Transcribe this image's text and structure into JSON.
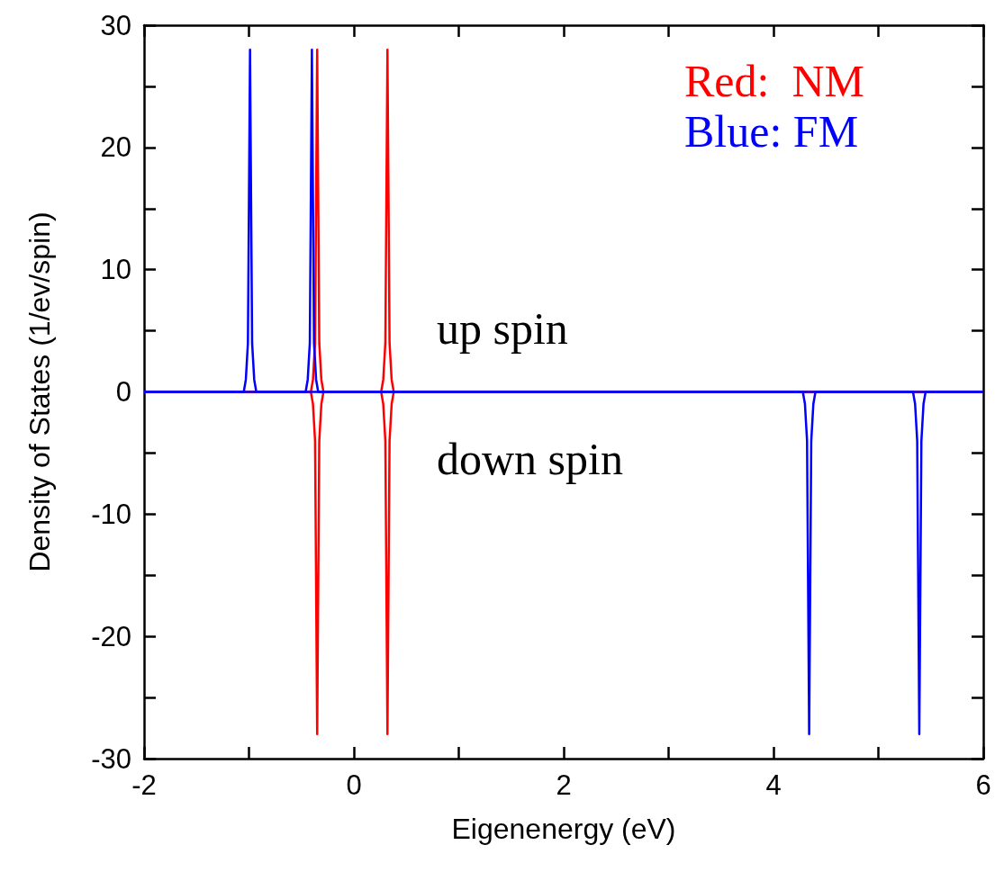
{
  "chart_data": {
    "type": "line",
    "xlabel": "Eigenenergy (eV)",
    "ylabel": "Density of States (1/ev/spin)",
    "xlim": [
      -2,
      6
    ],
    "ylim": [
      -30,
      30
    ],
    "xticks": [
      -2,
      {
        "value": -1,
        "label": null
      },
      0,
      {
        "value": 1,
        "label": null
      },
      2,
      {
        "value": 3,
        "label": null
      },
      4,
      {
        "value": 5,
        "label": null
      },
      6
    ],
    "yticks": [
      -30,
      {
        "value": -25,
        "label": null
      },
      -20,
      {
        "value": -15,
        "label": null
      },
      -10,
      {
        "value": -5,
        "label": null
      },
      0,
      {
        "value": 5,
        "label": null
      },
      10,
      {
        "value": 15,
        "label": null
      },
      20,
      {
        "value": 25,
        "label": null
      },
      30
    ],
    "grid": false,
    "legend": "top right",
    "annotations": [
      "up spin",
      "down spin"
    ],
    "series": [
      {
        "name": "Red:  NM",
        "color": "#ff0000",
        "x": [
          -2,
          -0.41,
          -0.39,
          -0.37,
          -0.35,
          -0.33,
          -0.31,
          -0.29,
          0.26,
          0.28,
          0.3,
          0.32,
          0.34,
          0.36,
          0.38,
          6
        ],
        "values": [
          0,
          0,
          1,
          4,
          28,
          4,
          1,
          0,
          0,
          1,
          4,
          28,
          4,
          1,
          0,
          0
        ]
      },
      {
        "color": "#ff0000",
        "x": [
          -2,
          -0.41,
          -0.39,
          -0.37,
          -0.35,
          -0.33,
          -0.31,
          -0.29,
          0.26,
          0.28,
          0.3,
          0.32,
          0.34,
          0.36,
          0.38,
          6
        ],
        "values": [
          0,
          0,
          -1,
          -4,
          -28,
          -4,
          -1,
          0,
          0,
          -1,
          -4,
          -28,
          -4,
          -1,
          0,
          0
        ]
      },
      {
        "name": "Blue: FM",
        "color": "#0000ff",
        "x": [
          -2,
          -1.05,
          -1.03,
          -1.01,
          -0.99,
          -0.97,
          -0.95,
          -0.93,
          -0.46,
          -0.44,
          -0.42,
          -0.4,
          -0.38,
          -0.36,
          -0.34,
          6
        ],
        "values": [
          0,
          0,
          1,
          4,
          28,
          4,
          1,
          0,
          0,
          1,
          4,
          28,
          4,
          1,
          0,
          0
        ]
      },
      {
        "color": "#0000ff",
        "x": [
          -2,
          4.28,
          4.3,
          4.32,
          4.34,
          4.36,
          4.38,
          4.4,
          5.33,
          5.35,
          5.37,
          5.39,
          5.41,
          5.43,
          5.45,
          6
        ],
        "values": [
          0,
          0,
          -1,
          -4,
          -28,
          -4,
          -1,
          0,
          0,
          -1,
          -4,
          -28,
          -4,
          -1,
          0,
          0
        ]
      }
    ]
  }
}
